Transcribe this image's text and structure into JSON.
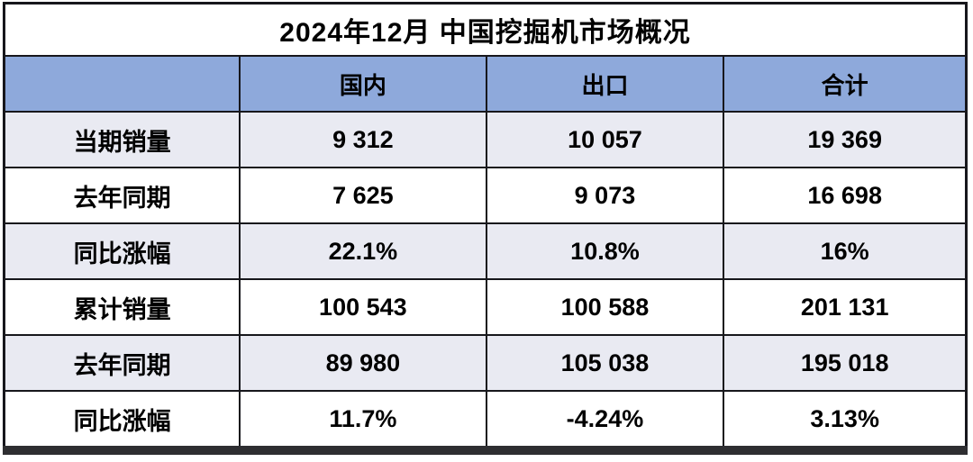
{
  "chart_data": {
    "type": "table",
    "title": "2024年12月 中国挖掘机市场概况",
    "columns": [
      "",
      "国内",
      "出口",
      "合计"
    ],
    "rows": [
      {
        "label": "当期销量",
        "values": [
          "9 312",
          "10 057",
          "19 369"
        ]
      },
      {
        "label": "去年同期",
        "values": [
          "7 625",
          "9 073",
          "16 698"
        ]
      },
      {
        "label": "同比涨幅",
        "values": [
          "22.1%",
          "10.8%",
          "16%"
        ]
      },
      {
        "label": "累计销量",
        "values": [
          "100 543",
          "100 588",
          "201 131"
        ]
      },
      {
        "label": "去年同期",
        "values": [
          "89 980",
          "105 038",
          "195 018"
        ]
      },
      {
        "label": "同比涨幅",
        "values": [
          "11.7%",
          "-4.24%",
          "3.13%"
        ]
      }
    ],
    "layout_hints": {
      "header_position": "top",
      "grid": true,
      "zebra_striping": true
    }
  },
  "colors": {
    "header_bg": "#8EA9DB",
    "row_alt_bg": "#E9EAF2",
    "row_bg": "#FFFFFF",
    "border": "#17171C",
    "bottom_edge": "#2E2E31",
    "text": "#000000"
  }
}
